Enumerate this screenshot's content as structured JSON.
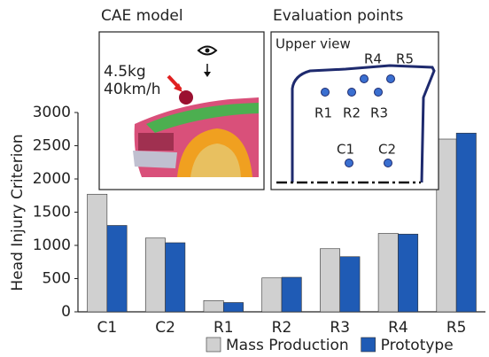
{
  "chart_data": {
    "type": "bar",
    "y_label": "Head Injury Criterion",
    "categories": [
      "C1",
      "C2",
      "R1",
      "R2",
      "R3",
      "R4",
      "R5"
    ],
    "series": [
      {
        "name": "Mass Production",
        "color": "#d0d0d0",
        "values": [
          1770,
          1110,
          170,
          510,
          950,
          1180,
          2600
        ]
      },
      {
        "name": "Prototype",
        "color": "#1f5bb5",
        "values": [
          1300,
          1040,
          140,
          520,
          830,
          1170,
          2690
        ]
      }
    ],
    "ylim": [
      0,
      3000
    ],
    "yticks": [
      0,
      500,
      1000,
      1500,
      2000,
      2500,
      3000
    ],
    "grid": false,
    "legend": "bottom-right",
    "insets": [
      {
        "title": "CAE model",
        "labels": [
          "4.5kg",
          "40km/h"
        ]
      },
      {
        "title": "Evaluation points",
        "subtitle": "Upper view",
        "points": [
          "R1",
          "R2",
          "R3",
          "R4",
          "R5",
          "C1",
          "C2"
        ]
      }
    ]
  }
}
